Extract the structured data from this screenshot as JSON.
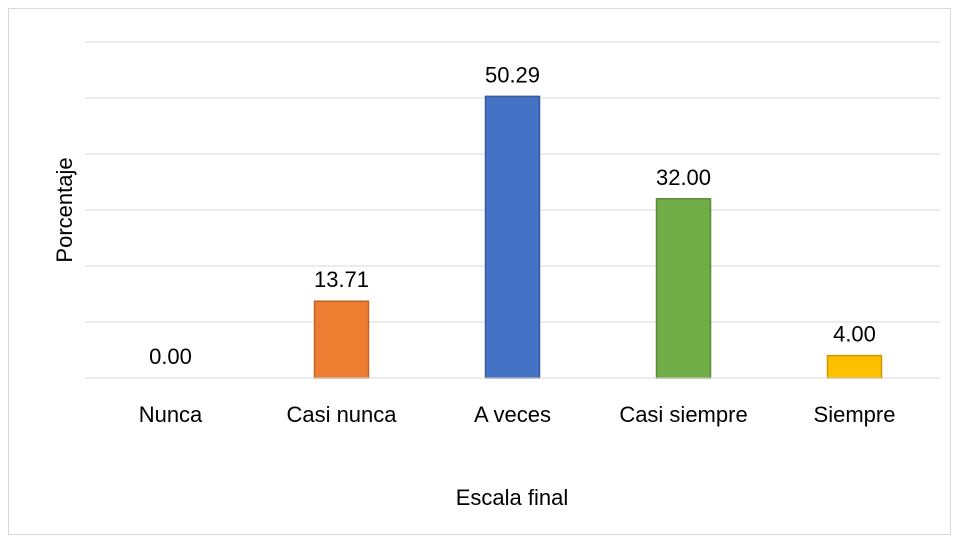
{
  "chart_data": {
    "type": "bar",
    "categories": [
      "Nunca",
      "Casi nunca",
      "A veces",
      "Casi siempre",
      "Siempre"
    ],
    "values": [
      0,
      13.71,
      50.29,
      32,
      4
    ],
    "value_labels": [
      "0.00",
      "13.71",
      "50.29",
      "32.00",
      "4.00"
    ],
    "colors": [
      "#4472c4",
      "#ed7d31",
      "#4472c4",
      "#70ad47",
      "#ffc000"
    ],
    "x_label": "Escala final",
    "y_label": "Porcentaje",
    "ylim": [
      0,
      60
    ],
    "yticks": [
      0,
      10,
      20,
      30,
      40,
      50,
      60
    ],
    "grid": true
  }
}
